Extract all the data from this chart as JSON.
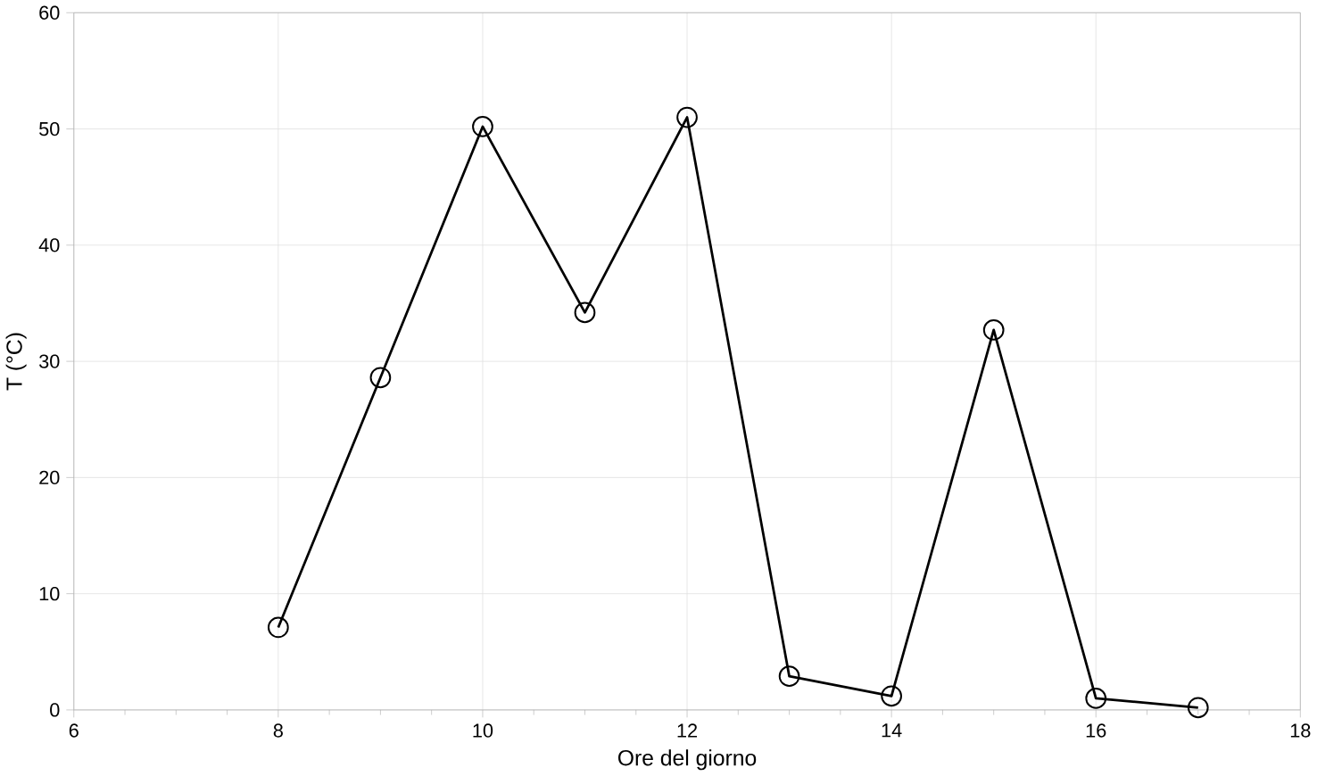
{
  "chart_data": {
    "type": "line",
    "xlabel": "Ore del giorno",
    "ylabel": "T (°C)",
    "x": [
      8,
      9,
      10,
      11,
      12,
      13,
      14,
      15,
      16,
      17
    ],
    "series": [
      {
        "color": "#000000",
        "values": [
          7.1,
          28.6,
          50.2,
          34.2,
          51.0,
          2.9,
          1.2,
          32.7,
          1.0,
          0.2
        ]
      }
    ],
    "xlim": [
      6,
      18
    ],
    "xticks": [
      6,
      8,
      10,
      12,
      14,
      16,
      18
    ],
    "ylim": [
      0,
      60
    ],
    "yticks": [
      0,
      10,
      20,
      30,
      40,
      50,
      60
    ],
    "grid": true,
    "marker": "circle",
    "line_style": "solid"
  }
}
